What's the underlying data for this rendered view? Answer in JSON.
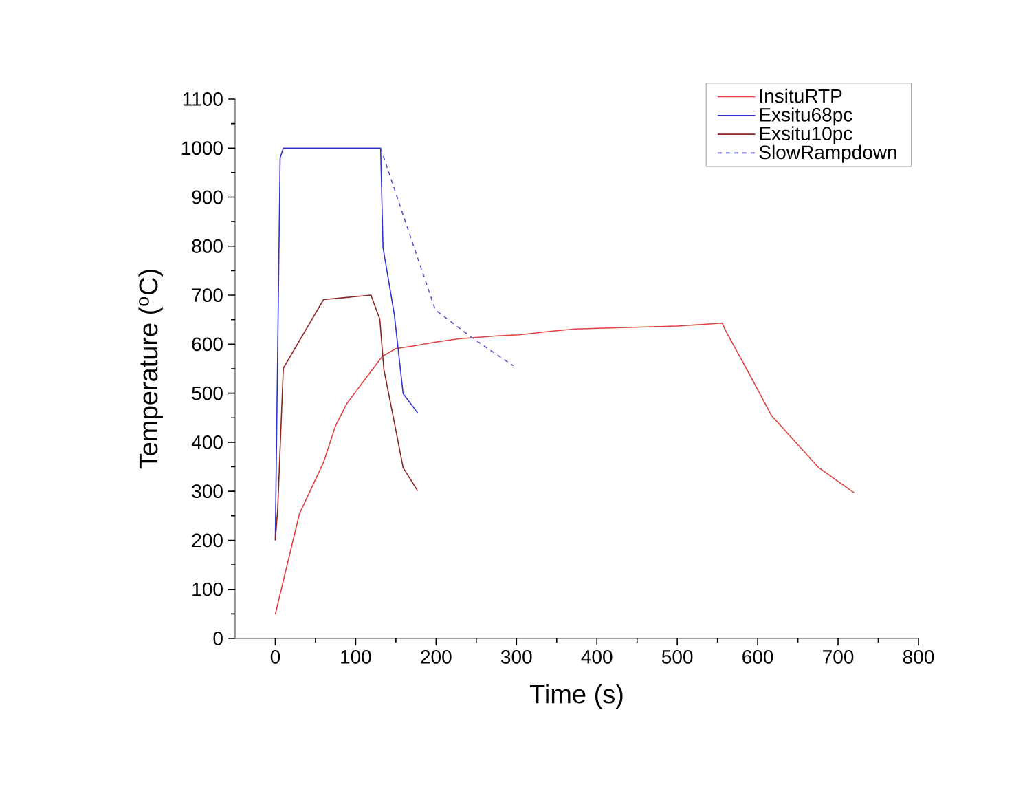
{
  "chart_data": {
    "type": "line",
    "xlabel": "Time (s)",
    "ylabel": "Temperature ($^{o}$C)",
    "xlim": [
      -50,
      800
    ],
    "xticks": [
      0,
      100,
      200,
      300,
      400,
      500,
      600,
      700,
      800
    ],
    "ylim": [
      0,
      1100
    ],
    "yticks": [
      0,
      100,
      200,
      300,
      400,
      500,
      600,
      700,
      800,
      900,
      1000,
      1100
    ],
    "legend": "top right",
    "grid": false,
    "marker": "none",
    "series": [
      {
        "name": "InsituRTP",
        "color": "#e04040",
        "line_style": "solid",
        "x": [
          0,
          30,
          60,
          75,
          89,
          115,
          133,
          150,
          174,
          198,
          228,
          276,
          303,
          341,
          373,
          416,
          500,
          556,
          560,
          588,
          617,
          676,
          720
        ],
        "values": [
          49,
          254,
          359,
          434,
          479,
          536,
          575,
          591,
          597,
          604,
          611,
          617,
          619,
          626,
          631,
          633,
          637,
          643,
          628,
          544,
          455,
          348,
          297
        ]
      },
      {
        "name": "Exsitu68pc",
        "color": "#3333cc",
        "line_style": "solid",
        "x": [
          0,
          6,
          10,
          131,
          134,
          148,
          159,
          177
        ],
        "values": [
          200,
          980,
          1000,
          1000,
          797,
          661,
          499,
          460
        ]
      },
      {
        "name": "Exsitu10pc",
        "color": "#8b2525",
        "line_style": "solid",
        "x": [
          0,
          3,
          10,
          60,
          119,
          130,
          135,
          148,
          159,
          177
        ],
        "values": [
          200,
          264,
          551,
          691,
          700,
          651,
          549,
          441,
          348,
          301
        ]
      },
      {
        "name": "SlowRampdown",
        "color": "#5555cc",
        "line_style": "dashed",
        "x": [
          131,
          169,
          199,
          244,
          296
        ],
        "values": [
          1000,
          815,
          670,
          614,
          556
        ]
      }
    ]
  }
}
